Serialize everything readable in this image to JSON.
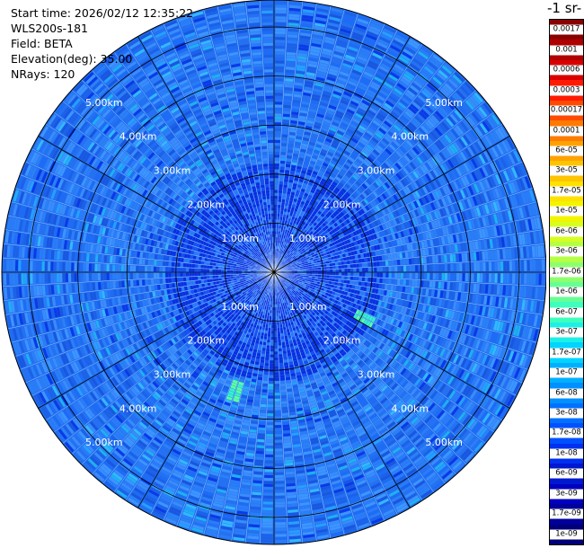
{
  "meta": {
    "start_time": "Start time: 2026/02/12 12:35:22",
    "instrument": "WLS200s-181",
    "field": "Field: BETA",
    "elevation": "Elevation(deg): 35.00",
    "nrays": "NRays: 120"
  },
  "colorbar": {
    "unit_label": "-1 sr-",
    "ticks": [
      "0.0017",
      "0.001",
      "0.0006",
      "0.0003",
      "0.00017",
      "0.0001",
      "6e-05",
      "3e-05",
      "1.7e-05",
      "1e-05",
      "6e-06",
      "3e-06",
      "1.7e-06",
      "1e-06",
      "6e-07",
      "3e-07",
      "1.7e-07",
      "1e-07",
      "6e-08",
      "3e-08",
      "1.7e-08",
      "1e-08",
      "6e-09",
      "3e-09",
      "1.7e-09",
      "1e-09"
    ],
    "colors": [
      "#8a0000",
      "#b00000",
      "#d90000",
      "#ff1a00",
      "#ff4a00",
      "#ff7a00",
      "#ffa200",
      "#ffc400",
      "#ffe100",
      "#f3f400",
      "#d6ff20",
      "#b5ff45",
      "#8dff6d",
      "#66ff94",
      "#3dffbe",
      "#1cf0e6",
      "#00d4ff",
      "#00b0ff",
      "#0090ff",
      "#0070ff",
      "#0050ff",
      "#0030f0",
      "#0018d0",
      "#0000c0",
      "#00009a",
      "#000078"
    ]
  },
  "chart_data": {
    "type": "heatmap",
    "projection": "polar (PPI)",
    "field": "BETA",
    "n_rays": 120,
    "elevation_deg": 35.0,
    "range_rings_km": [
      1.0,
      2.0,
      3.0,
      4.0,
      5.0
    ],
    "ring_labels": [
      "1.00km",
      "2.00km",
      "3.00km",
      "4.00km",
      "5.00km"
    ],
    "max_range_km": 5.55,
    "colorbar_range": [
      1e-09,
      0.0017
    ],
    "dominant_value_range": [
      1e-08,
      6e-08
    ],
    "features": [
      {
        "azimuth_deg": 117,
        "range_km": [
          1.8,
          2.3
        ],
        "approx_value": 1e-06
      },
      {
        "azimuth_deg": 198,
        "range_km": [
          2.3,
          2.8
        ],
        "approx_value": 1e-06
      }
    ]
  }
}
